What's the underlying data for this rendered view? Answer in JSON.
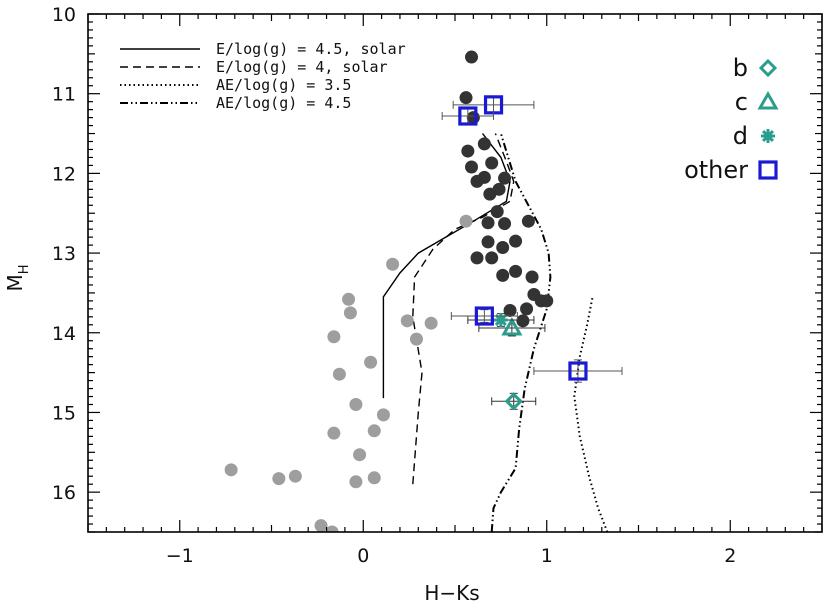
{
  "chart_data": {
    "type": "scatter",
    "title": "",
    "xlabel": "H−Ks",
    "ylabel": "M",
    "ylabel_sub": "H",
    "xlim": [
      -1.5,
      2.5
    ],
    "ylim": [
      10,
      16.5
    ],
    "y_inverted": true,
    "xticks": [
      -1,
      0,
      1,
      2
    ],
    "yticks": [
      10,
      11,
      12,
      13,
      14,
      15,
      16
    ],
    "grid": false,
    "colors": {
      "dark": "#333333",
      "grey": "#9e9e9e",
      "teal": "#2a9d8f",
      "blue": "#1a1ad2"
    },
    "model_curves": [
      {
        "label": "E/log(g) = 4.5, solar",
        "style": "solid",
        "points": [
          [
            0.11,
            14.82
          ],
          [
            0.11,
            14.4
          ],
          [
            0.11,
            13.9
          ],
          [
            0.11,
            13.55
          ],
          [
            0.2,
            13.25
          ],
          [
            0.3,
            13.0
          ],
          [
            0.45,
            12.8
          ],
          [
            0.6,
            12.6
          ],
          [
            0.78,
            12.35
          ],
          [
            0.8,
            12.1
          ],
          [
            0.75,
            11.8
          ],
          [
            0.65,
            11.5
          ]
        ]
      },
      {
        "label": "E/log(g) = 4, solar",
        "style": "dashed",
        "points": [
          [
            0.27,
            15.9
          ],
          [
            0.3,
            15.0
          ],
          [
            0.32,
            14.5
          ],
          [
            0.27,
            13.8
          ],
          [
            0.28,
            13.3
          ],
          [
            0.38,
            12.95
          ],
          [
            0.5,
            12.7
          ],
          [
            0.65,
            12.55
          ],
          [
            0.8,
            12.35
          ],
          [
            0.82,
            12.1
          ],
          [
            0.78,
            11.85
          ],
          [
            0.72,
            11.5
          ]
        ]
      },
      {
        "label": "AE/log(g) = 3.5",
        "style": "dotted",
        "points": [
          [
            1.33,
            16.5
          ],
          [
            1.28,
            16.2
          ],
          [
            1.23,
            15.8
          ],
          [
            1.18,
            15.3
          ],
          [
            1.15,
            14.8
          ],
          [
            1.18,
            14.3
          ],
          [
            1.22,
            13.9
          ],
          [
            1.25,
            13.55
          ]
        ]
      },
      {
        "label": "AE/log(g) = 4.5",
        "style": "dashdotdot",
        "points": [
          [
            0.7,
            16.5
          ],
          [
            0.71,
            16.2
          ],
          [
            0.75,
            16.0
          ],
          [
            0.83,
            15.7
          ],
          [
            0.85,
            15.2
          ],
          [
            0.88,
            14.7
          ],
          [
            0.93,
            14.2
          ],
          [
            1.0,
            13.7
          ],
          [
            1.02,
            13.3
          ],
          [
            1.01,
            13.0
          ],
          [
            0.97,
            12.7
          ],
          [
            0.9,
            12.4
          ],
          [
            0.83,
            12.1
          ],
          [
            0.79,
            11.8
          ],
          [
            0.75,
            11.5
          ]
        ]
      }
    ],
    "series": [
      {
        "kind": "grey-dots",
        "points": [
          [
            -0.72,
            15.72
          ],
          [
            -0.46,
            15.83
          ],
          [
            -0.37,
            15.8
          ],
          [
            -0.16,
            15.26
          ],
          [
            -0.04,
            15.87
          ],
          [
            0.06,
            15.82
          ],
          [
            -0.02,
            15.53
          ],
          [
            -0.13,
            14.52
          ],
          [
            -0.04,
            14.9
          ],
          [
            0.04,
            14.37
          ],
          [
            0.06,
            15.23
          ],
          [
            0.11,
            15.03
          ],
          [
            -0.16,
            14.05
          ],
          [
            -0.08,
            13.58
          ],
          [
            -0.07,
            13.75
          ],
          [
            0.16,
            13.14
          ],
          [
            0.24,
            13.85
          ],
          [
            0.29,
            14.08
          ],
          [
            0.37,
            13.88
          ],
          [
            0.56,
            12.6
          ],
          [
            -0.23,
            16.42
          ],
          [
            -0.17,
            16.5
          ]
        ]
      },
      {
        "kind": "dark-dots",
        "points": [
          [
            0.59,
            10.54
          ],
          [
            0.56,
            11.05
          ],
          [
            0.6,
            11.3
          ],
          [
            0.57,
            11.72
          ],
          [
            0.59,
            11.92
          ],
          [
            0.62,
            12.1
          ],
          [
            0.66,
            11.63
          ],
          [
            0.7,
            11.87
          ],
          [
            0.66,
            12.05
          ],
          [
            0.69,
            12.26
          ],
          [
            0.74,
            12.2
          ],
          [
            0.77,
            12.06
          ],
          [
            0.73,
            12.48
          ],
          [
            0.77,
            12.63
          ],
          [
            0.68,
            12.62
          ],
          [
            0.62,
            13.06
          ],
          [
            0.7,
            13.06
          ],
          [
            0.68,
            12.86
          ],
          [
            0.76,
            12.93
          ],
          [
            0.76,
            13.28
          ],
          [
            0.83,
            12.85
          ],
          [
            0.83,
            13.23
          ],
          [
            0.9,
            12.6
          ],
          [
            0.92,
            13.3
          ],
          [
            0.93,
            13.52
          ],
          [
            0.97,
            13.6
          ],
          [
            1.0,
            13.6
          ],
          [
            0.89,
            13.7
          ],
          [
            0.8,
            13.72
          ],
          [
            0.87,
            13.85
          ]
        ]
      },
      {
        "name": "b",
        "kind": "diamond",
        "points": [
          [
            0.82,
            14.86
          ]
        ],
        "xerr": [
          0.12
        ],
        "yerr": [
          0.1
        ]
      },
      {
        "name": "c",
        "kind": "triangle",
        "points": [
          [
            0.81,
            13.94
          ]
        ],
        "xerr": [
          0.18
        ],
        "yerr": [
          0.1
        ]
      },
      {
        "name": "d",
        "kind": "asterisk",
        "points": [
          [
            0.75,
            13.84
          ]
        ],
        "xerr": [
          0.18
        ],
        "yerr": [
          0.08
        ]
      },
      {
        "name": "other",
        "kind": "square",
        "points": [
          [
            0.71,
            11.14
          ],
          [
            0.57,
            11.28
          ],
          [
            0.66,
            13.79
          ],
          [
            1.17,
            14.48
          ]
        ],
        "xerr": [
          0.22,
          0.14,
          0.18,
          0.24
        ],
        "yerr": [
          0.1,
          0.1,
          0.08,
          0.14
        ]
      }
    ]
  }
}
